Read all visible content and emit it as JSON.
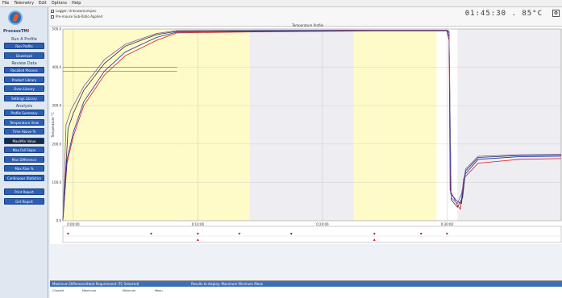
{
  "menu": [
    "File",
    "Telemetry",
    "Edit",
    "Options",
    "Help"
  ],
  "brand": {
    "name": "ProcessTM",
    "badge": "I"
  },
  "sidebar": {
    "sections": [
      {
        "label": "Run A Profile",
        "buttons": [
          "Run Profile",
          "Download"
        ]
      },
      {
        "label": "Review Data",
        "buttons": [
          "Recalled Process",
          "Product Library",
          "Oven Library",
          "Settings Library"
        ]
      },
      {
        "label": "Analysis",
        "buttons": [
          "Profile Summary",
          "Temperature View",
          "Time Above %",
          "Max/Min Value",
          "Max Fall Slope",
          "Max Difference",
          "Max Rise %",
          "Continuous Statistics"
        ]
      },
      {
        "label": "",
        "buttons": [
          "Print Report",
          "Get Report"
        ]
      }
    ]
  },
  "top": {
    "row1": "Logger: Unknown/unspec",
    "row2": "Pre-mouse Sub-Ratio Applied",
    "clock": "01:45:30 . 85°C",
    "title": "Temperature Profile"
  },
  "chart_data": {
    "type": "line",
    "title": "Temperature Profile",
    "xlabel": "Time (hh:mm:ss)",
    "ylabel": "Temperature °C",
    "x_ticks": [
      "0:00:00",
      "0:10:00",
      "0:20:00",
      "0:30:00",
      "0:40:00"
    ],
    "y_ticks": [
      0,
      100,
      200,
      300,
      400,
      500
    ],
    "xlim": [
      0,
      48
    ],
    "ylim": [
      0,
      500
    ],
    "background_bands": [
      {
        "color": "#fffbc9",
        "x": [
          0,
          11
        ]
      },
      {
        "color": "#ffffff",
        "x": [
          11,
          11
        ]
      },
      {
        "color": "#fffbc9",
        "x": [
          11,
          18
        ]
      },
      {
        "color": "#eeeef2",
        "x": [
          18,
          28
        ]
      },
      {
        "color": "#fffbc9",
        "x": [
          28,
          36
        ]
      },
      {
        "color": "#ffffff",
        "x": [
          36,
          38
        ]
      },
      {
        "color": "#eeeef2",
        "x": [
          38,
          48
        ]
      }
    ],
    "series": [
      {
        "color": "#d61a1a",
        "values": [
          [
            0,
            0
          ],
          [
            0.4,
            150
          ],
          [
            1,
            220
          ],
          [
            2,
            300
          ],
          [
            4,
            380
          ],
          [
            6,
            430
          ],
          [
            9,
            470
          ],
          [
            11,
            490
          ],
          [
            20,
            493
          ],
          [
            30,
            495
          ],
          [
            37,
            495
          ],
          [
            37.2,
            470
          ],
          [
            37.3,
            80
          ],
          [
            38,
            40
          ],
          [
            38.3,
            30
          ],
          [
            38.6,
            110
          ],
          [
            40,
            150
          ],
          [
            44,
            160
          ],
          [
            48,
            162
          ]
        ]
      },
      {
        "color": "#1a2fbf",
        "values": [
          [
            0,
            0
          ],
          [
            0.4,
            160
          ],
          [
            1,
            230
          ],
          [
            2,
            310
          ],
          [
            4,
            390
          ],
          [
            6,
            440
          ],
          [
            9,
            478
          ],
          [
            11,
            492
          ],
          [
            20,
            494
          ],
          [
            30,
            496
          ],
          [
            37,
            496
          ],
          [
            37.2,
            480
          ],
          [
            37.35,
            70
          ],
          [
            38,
            50
          ],
          [
            38.4,
            45
          ],
          [
            38.7,
            120
          ],
          [
            40,
            160
          ],
          [
            44,
            167
          ],
          [
            48,
            168
          ]
        ]
      },
      {
        "color": "#333333",
        "values": [
          [
            0,
            0
          ],
          [
            0.5,
            240
          ],
          [
            1,
            280
          ],
          [
            2,
            340
          ],
          [
            4,
            410
          ],
          [
            6,
            455
          ],
          [
            9,
            485
          ],
          [
            11,
            494
          ],
          [
            20,
            495
          ],
          [
            30,
            496
          ],
          [
            37,
            496
          ],
          [
            37.2,
            490
          ],
          [
            37.4,
            55
          ],
          [
            38,
            35
          ],
          [
            38.5,
            60
          ],
          [
            38.8,
            130
          ],
          [
            40,
            165
          ],
          [
            44,
            170
          ],
          [
            48,
            171
          ]
        ]
      },
      {
        "color": "#7b5fa8",
        "values": [
          [
            0,
            0
          ],
          [
            0.3,
            250
          ],
          [
            0.8,
            290
          ],
          [
            2,
            350
          ],
          [
            4,
            420
          ],
          [
            6,
            460
          ],
          [
            9,
            488
          ],
          [
            11,
            496
          ],
          [
            20,
            497
          ],
          [
            30,
            497
          ],
          [
            37,
            497
          ],
          [
            37.2,
            495
          ],
          [
            37.4,
            60
          ],
          [
            38,
            45
          ],
          [
            38.4,
            70
          ],
          [
            38.8,
            135
          ],
          [
            40,
            168
          ],
          [
            44,
            172
          ],
          [
            48,
            173
          ]
        ]
      }
    ],
    "ref_lines": [
      {
        "y": 400,
        "x": [
          0,
          11
        ],
        "color": "#d61a1a"
      },
      {
        "y": 390,
        "x": [
          0,
          11
        ],
        "color": "#d61a1a"
      }
    ],
    "markers_x": [
      0.5,
      8.5,
      13,
      17,
      22,
      30,
      34.5,
      37
    ]
  },
  "footer": {
    "bar_left": "Maximum Difference/Heat Requirement (TC Selected)",
    "bar_right": "Results to display:  Maximum  Minimum  Mean",
    "col_a": "Channel",
    "col_b": "Maximum",
    "col_c": "Minimum",
    "col_d": "Mean"
  }
}
